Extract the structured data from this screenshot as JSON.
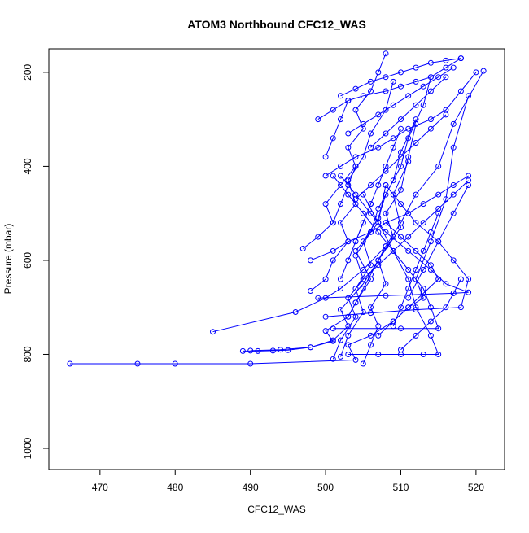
{
  "chart_data": {
    "type": "scatter",
    "mode": "lines+markers",
    "title": "ATOM3 Northbound CFC12_WAS",
    "xlabel": "CFC12_WAS",
    "ylabel": "Pressure (mbar)",
    "xlim": [
      463.2,
      523.8
    ],
    "ylim": [
      1045,
      150
    ],
    "y_inverted": true,
    "x_ticks": [
      470,
      480,
      490,
      500,
      510,
      520
    ],
    "y_ticks": [
      200,
      400,
      600,
      800,
      1000
    ],
    "grid": false,
    "legend": "none",
    "series_color": "#0000ff",
    "marker": "open-circle",
    "series": [
      {
        "x": [
          466,
          475,
          480,
          490,
          504,
          503,
          506,
          509,
          511,
          513,
          512,
          514,
          516,
          517,
          519
        ],
        "y": [
          820,
          820,
          820,
          820,
          812,
          780,
          760,
          730,
          700,
          680,
          640,
          560,
          470,
          360,
          250
        ]
      },
      {
        "x": [
          485,
          496,
          500,
          502,
          505,
          508,
          510,
          512,
          515,
          517,
          521
        ],
        "y": [
          752,
          710,
          680,
          660,
          620,
          570,
          520,
          460,
          400,
          310,
          197
        ]
      },
      {
        "x": [
          489,
          491,
          493,
          495,
          498,
          501,
          503,
          502,
          505,
          507,
          510,
          509,
          511
        ],
        "y": [
          793,
          793,
          792,
          791,
          785,
          770,
          740,
          705,
          650,
          600,
          530,
          460,
          390
        ]
      },
      {
        "x": [
          490,
          494,
          498,
          501,
          500,
          503,
          504,
          506,
          504,
          507,
          508
        ],
        "y": [
          792,
          790,
          785,
          772,
          750,
          720,
          690,
          640,
          580,
          520,
          440
        ]
      },
      {
        "x": [
          497,
          499,
          501,
          500,
          502,
          504,
          503,
          505,
          504,
          506,
          507,
          508
        ],
        "y": [
          575,
          550,
          520,
          480,
          440,
          400,
          360,
          320,
          280,
          240,
          200,
          160
        ]
      },
      {
        "x": [
          498,
          500,
          501,
          503,
          502,
          504,
          503,
          505,
          506,
          508,
          509
        ],
        "y": [
          665,
          640,
          600,
          560,
          520,
          480,
          430,
          380,
          330,
          280,
          220
        ]
      },
      {
        "x": [
          501,
          502,
          504,
          503,
          505,
          504,
          506,
          507,
          509,
          510,
          512
        ],
        "y": [
          810,
          770,
          720,
          680,
          640,
          590,
          540,
          490,
          430,
          370,
          300
        ]
      },
      {
        "x": [
          502,
          503,
          505,
          504,
          506,
          505,
          507,
          508,
          510,
          511,
          513,
          514
        ],
        "y": [
          805,
          760,
          710,
          660,
          610,
          560,
          510,
          460,
          400,
          340,
          270,
          210
        ]
      },
      {
        "x": [
          505,
          506,
          507,
          506,
          508,
          507,
          509,
          508,
          510,
          511,
          512
        ],
        "y": [
          820,
          780,
          740,
          700,
          650,
          600,
          550,
          500,
          450,
          380,
          310
        ]
      },
      {
        "x": [
          503,
          507,
          510,
          513,
          515,
          514,
          512,
          511,
          509,
          507,
          505
        ],
        "y": [
          800,
          800,
          800,
          800,
          800,
          760,
          700,
          640,
          580,
          520,
          460
        ]
      },
      {
        "x": [
          499,
          508,
          517,
          519,
          516,
          514,
          511,
          508,
          506,
          504,
          502
        ],
        "y": [
          680,
          675,
          670,
          668,
          650,
          620,
          580,
          540,
          500,
          460,
          420
        ]
      },
      {
        "x": [
          500,
          506,
          512,
          518,
          519,
          517,
          515,
          512,
          510,
          508
        ],
        "y": [
          720,
          712,
          705,
          700,
          640,
          600,
          560,
          520,
          480,
          440
        ]
      },
      {
        "x": [
          501,
          510,
          515,
          514,
          513,
          511,
          509,
          507,
          505,
          503,
          501
        ],
        "y": [
          745,
          745,
          745,
          700,
          660,
          620,
          580,
          540,
          500,
          460,
          420
        ]
      },
      {
        "x": [
          498,
          501,
          503,
          506,
          508,
          511,
          513,
          515,
          517,
          519
        ],
        "y": [
          600,
          580,
          560,
          540,
          520,
          500,
          480,
          460,
          440,
          420
        ]
      },
      {
        "x": [
          500,
          502,
          504,
          507,
          509,
          511,
          514,
          516,
          518,
          520
        ],
        "y": [
          420,
          400,
          380,
          360,
          340,
          320,
          300,
          280,
          240,
          200
        ]
      },
      {
        "x": [
          499,
          501,
          503,
          505,
          508,
          510,
          512,
          514,
          516,
          518
        ],
        "y": [
          300,
          280,
          260,
          250,
          240,
          230,
          220,
          210,
          190,
          170
        ]
      },
      {
        "x": [
          502,
          504,
          506,
          508,
          510,
          512,
          514,
          516,
          518
        ],
        "y": [
          250,
          235,
          220,
          210,
          200,
          190,
          180,
          175,
          170
        ]
      },
      {
        "x": [
          503,
          505,
          507,
          509,
          511,
          513,
          515,
          517
        ],
        "y": [
          330,
          310,
          290,
          270,
          250,
          230,
          210,
          190
        ]
      },
      {
        "x": [
          504,
          506,
          508,
          510,
          512,
          514,
          516
        ],
        "y": [
          470,
          440,
          410,
          380,
          350,
          320,
          290
        ]
      },
      {
        "x": [
          505,
          507,
          509,
          511,
          513,
          515,
          517,
          519
        ],
        "y": [
          640,
          610,
          580,
          550,
          520,
          490,
          460,
          430
        ]
      },
      {
        "x": [
          507,
          509,
          511,
          513,
          515,
          514,
          512,
          510,
          508
        ],
        "y": [
          760,
          730,
          700,
          670,
          640,
          610,
          580,
          550,
          520
        ]
      },
      {
        "x": [
          509,
          510,
          511,
          512,
          513,
          514,
          515
        ],
        "y": [
          740,
          700,
          660,
          620,
          580,
          540,
          500
        ]
      },
      {
        "x": [
          510,
          512,
          514,
          516,
          517,
          518
        ],
        "y": [
          790,
          760,
          730,
          700,
          670,
          640
        ]
      },
      {
        "x": [
          511,
          513,
          515,
          517,
          519
        ],
        "y": [
          680,
          620,
          560,
          500,
          440
        ]
      },
      {
        "x": [
          506,
          508,
          510,
          512,
          514,
          516
        ],
        "y": [
          360,
          330,
          300,
          270,
          240,
          210
        ]
      },
      {
        "x": [
          504,
          505,
          506,
          507,
          508,
          509,
          510
        ],
        "y": [
          560,
          520,
          480,
          440,
          400,
          360,
          320
        ]
      },
      {
        "x": [
          503,
          504,
          505,
          506,
          507,
          508
        ],
        "y": [
          720,
          690,
          660,
          630,
          600,
          570
        ]
      },
      {
        "x": [
          502,
          503,
          504,
          505,
          506
        ],
        "y": [
          640,
          600,
          560,
          520,
          480
        ]
      },
      {
        "x": [
          501,
          502,
          503,
          504
        ],
        "y": [
          520,
          480,
          440,
          400
        ]
      },
      {
        "x": [
          500,
          501,
          502,
          503
        ],
        "y": [
          380,
          340,
          300,
          260
        ]
      }
    ]
  }
}
